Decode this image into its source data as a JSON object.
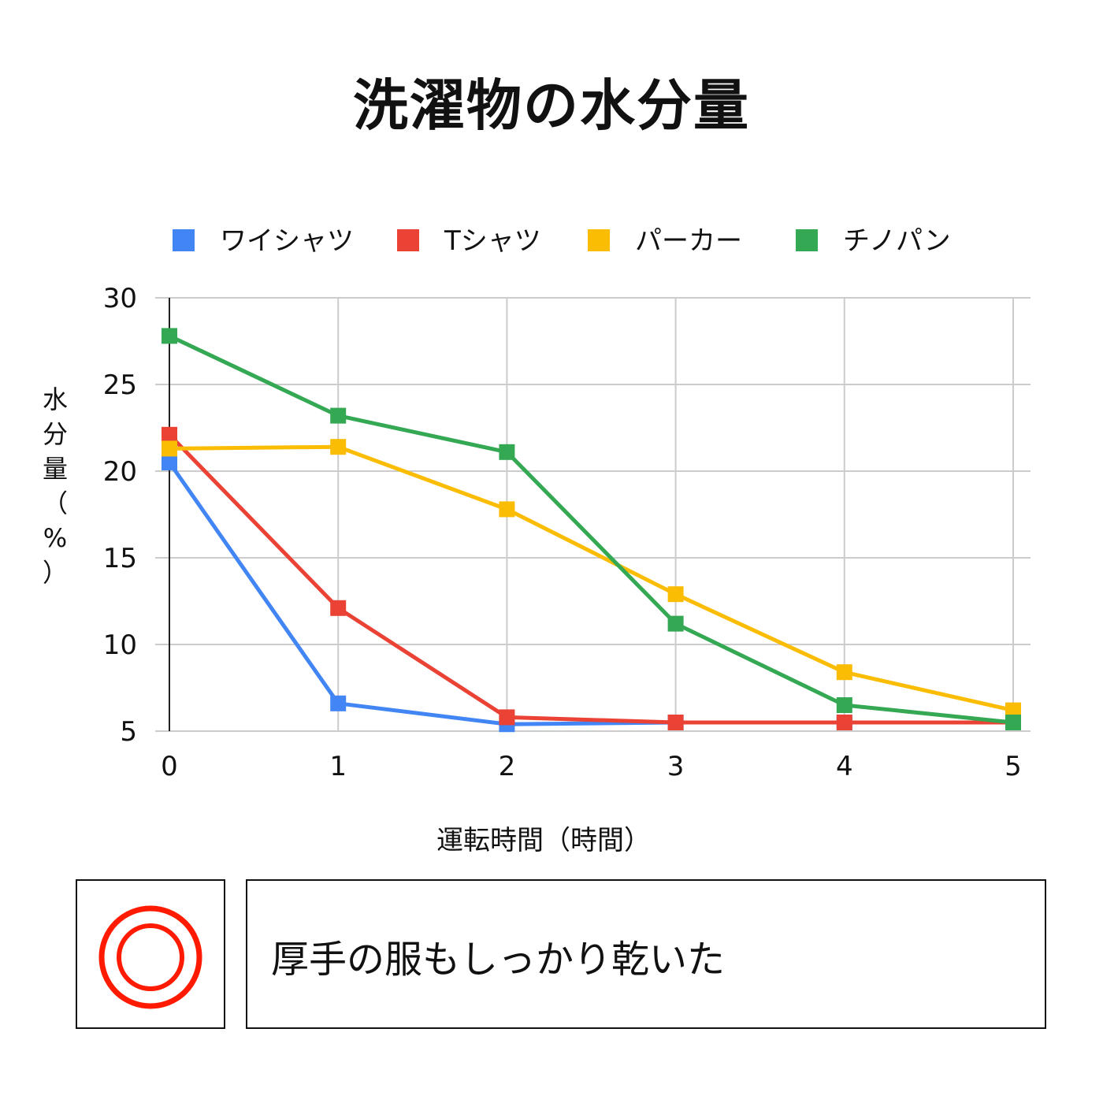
{
  "title": "洗濯物の水分量",
  "chart_data": {
    "type": "line",
    "x": [
      0,
      1,
      2,
      3,
      4,
      5
    ],
    "xlabel": "運転時間（時間）",
    "ylabel": "水分量（%）",
    "ylim": [
      5,
      30
    ],
    "yticks": [
      5,
      10,
      15,
      20,
      25,
      30
    ],
    "grid": true,
    "legend_position": "top",
    "series": [
      {
        "name": "ワイシャツ",
        "color": "#4285f4",
        "values": [
          20.5,
          6.6,
          5.4,
          5.5,
          5.5,
          5.5
        ]
      },
      {
        "name": "Tシャツ",
        "color": "#ea4335",
        "values": [
          22.1,
          12.1,
          5.8,
          5.5,
          5.5,
          5.5
        ]
      },
      {
        "name": "パーカー",
        "color": "#fbbc04",
        "values": [
          21.3,
          21.4,
          17.8,
          12.9,
          8.4,
          6.2
        ]
      },
      {
        "name": "チノパン",
        "color": "#34a853",
        "values": [
          27.8,
          23.2,
          21.1,
          11.2,
          6.5,
          5.5
        ]
      }
    ]
  },
  "result": {
    "rating_icon": "double-circle",
    "rating_color": "#ff1a00",
    "comment": "厚手の服もしっかり乾いた"
  }
}
